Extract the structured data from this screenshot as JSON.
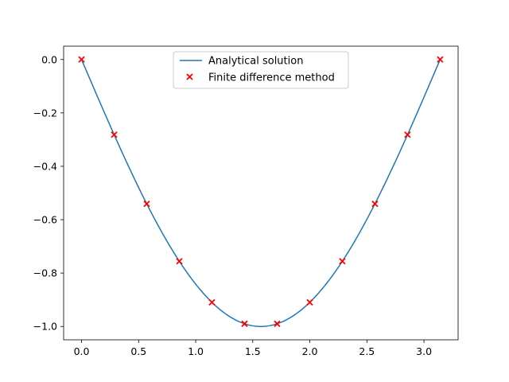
{
  "chart_data": {
    "type": "line",
    "title": "",
    "xlabel": "",
    "ylabel": "",
    "xlim": [
      -0.157,
      3.299
    ],
    "ylim": [
      -1.05,
      0.05
    ],
    "grid": false,
    "legend_placement": "top-center",
    "x_ticks": [
      {
        "value": 0.0,
        "label": "0.0"
      },
      {
        "value": 0.5,
        "label": "0.5"
      },
      {
        "value": 1.0,
        "label": "1.0"
      },
      {
        "value": 1.5,
        "label": "1.5"
      },
      {
        "value": 2.0,
        "label": "2.0"
      },
      {
        "value": 2.5,
        "label": "2.5"
      },
      {
        "value": 3.0,
        "label": "3.0"
      }
    ],
    "y_ticks": [
      {
        "value": 0.0,
        "label": "0.0"
      },
      {
        "value": -0.2,
        "label": "−0.2"
      },
      {
        "value": -0.4,
        "label": "−0.4"
      },
      {
        "value": -0.6,
        "label": "−0.6"
      },
      {
        "value": -0.8,
        "label": "−0.8"
      },
      {
        "value": -1.0,
        "label": "−1.0"
      }
    ],
    "series": [
      {
        "name": "Analytical solution",
        "kind": "line",
        "color": "#1f77b4",
        "function": "-sin(x)",
        "x_range": [
          0,
          3.14159
        ]
      },
      {
        "name": "Finite difference method",
        "kind": "scatter",
        "marker": "x",
        "color": "#ff0000",
        "x": [
          0.0,
          0.2856,
          0.5712,
          0.8568,
          1.1424,
          1.428,
          1.7136,
          1.9992,
          2.2848,
          2.5704,
          2.856,
          3.1416
        ],
        "y": [
          0.0,
          -0.2817,
          -0.5406,
          -0.7557,
          -0.9096,
          -0.9898,
          -0.9898,
          -0.9096,
          -0.7557,
          -0.5406,
          -0.2817,
          0.0
        ]
      }
    ]
  }
}
